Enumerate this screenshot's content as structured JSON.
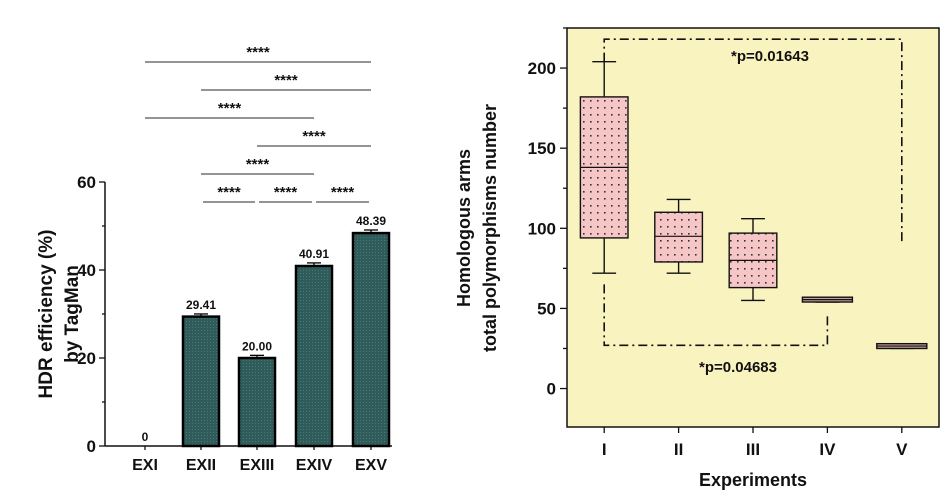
{
  "chart_data": [
    {
      "type": "bar",
      "title": "",
      "xlabel": "",
      "ylabel": [
        "HDR efficiency (%)",
        "by TagMan"
      ],
      "ylim": [
        0,
        60
      ],
      "yticks": [
        0,
        20,
        40,
        60
      ],
      "categories": [
        "EXI",
        "EXII",
        "EXIII",
        "EXIV",
        "EXV"
      ],
      "values": [
        0,
        29.41,
        20.0,
        40.91,
        48.39
      ],
      "data_labels": [
        "0",
        "29.41",
        "20.00",
        "40.91",
        "48.39"
      ],
      "error": [
        0,
        0.6,
        0.6,
        0.7,
        0.7
      ],
      "bar_color": "#2f5c5a",
      "grid": false,
      "significance": [
        {
          "from": "EXI",
          "to": "EXV",
          "label": "****"
        },
        {
          "from": "EXII",
          "to": "EXV",
          "label": "****"
        },
        {
          "from": "EXI",
          "to": "EXIV",
          "label": "****"
        },
        {
          "from": "EXIII",
          "to": "EXV",
          "label": "****"
        },
        {
          "from": "EXII",
          "to": "EXIV",
          "label": "****"
        },
        {
          "from": "EXII",
          "to": "EXIII",
          "label": "****"
        },
        {
          "from": "EXIII",
          "to": "EXIV",
          "label": "****"
        },
        {
          "from": "EXIV",
          "to": "EXV",
          "label": "****"
        }
      ]
    },
    {
      "type": "box",
      "title": "",
      "xlabel": "Experiments",
      "ylabel": [
        "Homologous arms",
        "total polymorphisms number"
      ],
      "ylim": [
        -24,
        225
      ],
      "yticks": [
        0,
        50,
        100,
        150,
        200
      ],
      "categories": [
        "I",
        "II",
        "III",
        "IV",
        "V"
      ],
      "boxes": [
        {
          "min": 72,
          "q1": 94,
          "median": 138,
          "q3": 182,
          "max": 204
        },
        {
          "min": 72,
          "q1": 79,
          "median": 95,
          "q3": 110,
          "max": 118
        },
        {
          "min": 55,
          "q1": 63,
          "median": 80,
          "q3": 97,
          "max": 106
        },
        {
          "min": 54,
          "q1": 54,
          "median": 55.5,
          "q3": 57,
          "max": 57
        },
        {
          "min": 25,
          "q1": 25,
          "median": 26.5,
          "q3": 28,
          "max": 28
        }
      ],
      "box_color": "#f6c6c6",
      "background_color": "#f9f3c0",
      "grid": false,
      "annotations": [
        {
          "text": "*p=0.01643",
          "from": "I",
          "to": "V",
          "y": 218,
          "from_end": 204,
          "to_end": 92,
          "label_y": 208
        },
        {
          "text": "*p=0.04683",
          "from": "I",
          "to": "IV",
          "y": 27,
          "from_end": 65,
          "to_end": 46,
          "label_y": 14
        }
      ]
    }
  ]
}
